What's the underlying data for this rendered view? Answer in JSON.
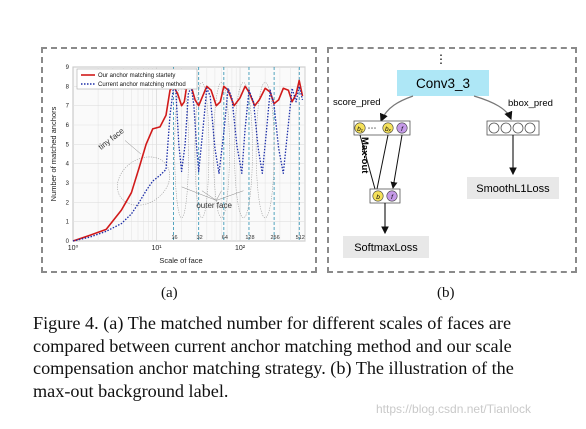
{
  "panel_a": {
    "chart_data": {
      "type": "line",
      "xlabel": "Scale of face",
      "ylabel": "Number of matched anchors",
      "x_tick_labels": [
        "10⁰",
        "10¹",
        "10²"
      ],
      "x_scale": "log",
      "ylim": [
        0,
        9
      ],
      "y_ticks": [
        "0",
        "1",
        "2",
        "3",
        "4",
        "5",
        "6",
        "7",
        "8",
        "9"
      ],
      "grid": true,
      "legend_placement": "top-left",
      "anchor_scale_labels": [
        "16",
        "32",
        "64",
        "128",
        "256",
        "512"
      ],
      "annotations": [
        "tiny face",
        "outer face"
      ],
      "series": [
        {
          "name": "Our anchor matching startety",
          "color": "#d11a1a",
          "style": "solid",
          "points": [
            [
              1,
              0
            ],
            [
              1.6,
              0.3
            ],
            [
              2.5,
              0.6
            ],
            [
              3.8,
              1.6
            ],
            [
              5,
              2.5
            ],
            [
              6.2,
              3.8
            ],
            [
              7.5,
              5.0
            ],
            [
              9,
              5.8
            ],
            [
              11,
              5.9
            ],
            [
              13,
              6.5
            ],
            [
              14.5,
              7.8
            ],
            [
              16,
              8.0
            ],
            [
              18,
              7.6
            ],
            [
              20,
              7.0
            ],
            [
              21.5,
              7.2
            ],
            [
              23,
              8.0
            ],
            [
              26,
              8.0
            ],
            [
              29,
              7.3
            ],
            [
              32,
              7.0
            ],
            [
              35,
              7.4
            ],
            [
              40,
              8.0
            ],
            [
              45,
              7.8
            ],
            [
              52,
              7.0
            ],
            [
              58,
              7.2
            ],
            [
              64,
              8.0
            ],
            [
              72,
              7.8
            ],
            [
              85,
              7.0
            ],
            [
              100,
              7.4
            ],
            [
              115,
              8.0
            ],
            [
              128,
              7.7
            ],
            [
              150,
              7.0
            ],
            [
              170,
              7.3
            ],
            [
              200,
              7.9
            ],
            [
              230,
              7.7
            ],
            [
              256,
              7.1
            ],
            [
              290,
              7.3
            ],
            [
              330,
              7.9
            ],
            [
              380,
              7.8
            ],
            [
              420,
              7.2
            ],
            [
              470,
              7.6
            ],
            [
              512,
              8.3
            ],
            [
              560,
              7.5
            ]
          ]
        },
        {
          "name": "Current anchor matching method",
          "color": "#1c2ea8",
          "style": "dotted",
          "points": [
            [
              1,
              0
            ],
            [
              1.6,
              0.2
            ],
            [
              2.5,
              0.5
            ],
            [
              3.8,
              0.9
            ],
            [
              5,
              1.4
            ],
            [
              6.2,
              2.0
            ],
            [
              7.5,
              2.6
            ],
            [
              9,
              3.1
            ],
            [
              11,
              3.4
            ],
            [
              13,
              3.7
            ],
            [
              14.5,
              6.5
            ],
            [
              16,
              8.0
            ],
            [
              17,
              7.8
            ],
            [
              18.5,
              5.0
            ],
            [
              20,
              3.6
            ],
            [
              22,
              5.0
            ],
            [
              24,
              7.6
            ],
            [
              26,
              8.0
            ],
            [
              28,
              7.0
            ],
            [
              30,
              5.0
            ],
            [
              32,
              3.6
            ],
            [
              36,
              5.8
            ],
            [
              40,
              7.9
            ],
            [
              44,
              7.5
            ],
            [
              50,
              4.8
            ],
            [
              56,
              3.5
            ],
            [
              64,
              5.6
            ],
            [
              72,
              7.9
            ],
            [
              80,
              7.4
            ],
            [
              92,
              4.9
            ],
            [
              105,
              3.5
            ],
            [
              115,
              5.8
            ],
            [
              128,
              7.8
            ],
            [
              145,
              7.2
            ],
            [
              165,
              4.8
            ],
            [
              185,
              3.5
            ],
            [
              205,
              5.5
            ],
            [
              230,
              7.8
            ],
            [
              256,
              7.0
            ],
            [
              290,
              4.8
            ],
            [
              330,
              3.5
            ],
            [
              370,
              5.6
            ],
            [
              420,
              7.9
            ],
            [
              470,
              7.2
            ],
            [
              512,
              8.0
            ],
            [
              560,
              7.3
            ]
          ]
        }
      ]
    }
  },
  "panel_b": {
    "conv_label": "Conv3_3",
    "top_dots": "⋮",
    "score_pred_label": "score_pred",
    "bbox_pred_label": "bbox_pred",
    "maxout_label": "Max-out",
    "score_cells": [
      "b₁",
      "⋯",
      "bₓ",
      "f"
    ],
    "merged_cells": [
      "b",
      "f"
    ],
    "softmax_label": "SoftmaxLoss",
    "smoothl1_label": "SmoothL1Loss",
    "colors": {
      "conv_box": "#aee7f6",
      "cell_b": "#f5e15a",
      "cell_f": "#c59ae8",
      "loss_box": "#e8e8e8"
    }
  },
  "sublabels": {
    "a": "(a)",
    "b": "(b)"
  },
  "caption": {
    "lines": [
      "Figure 4. (a) The matched number for different scales of faces are",
      "compared between current anchor matching method and our scale",
      "compensation anchor matching strategy. (b) The illustration of the",
      "max-out background label."
    ]
  },
  "watermark": "https://blog.csdn.net/Tianlock"
}
